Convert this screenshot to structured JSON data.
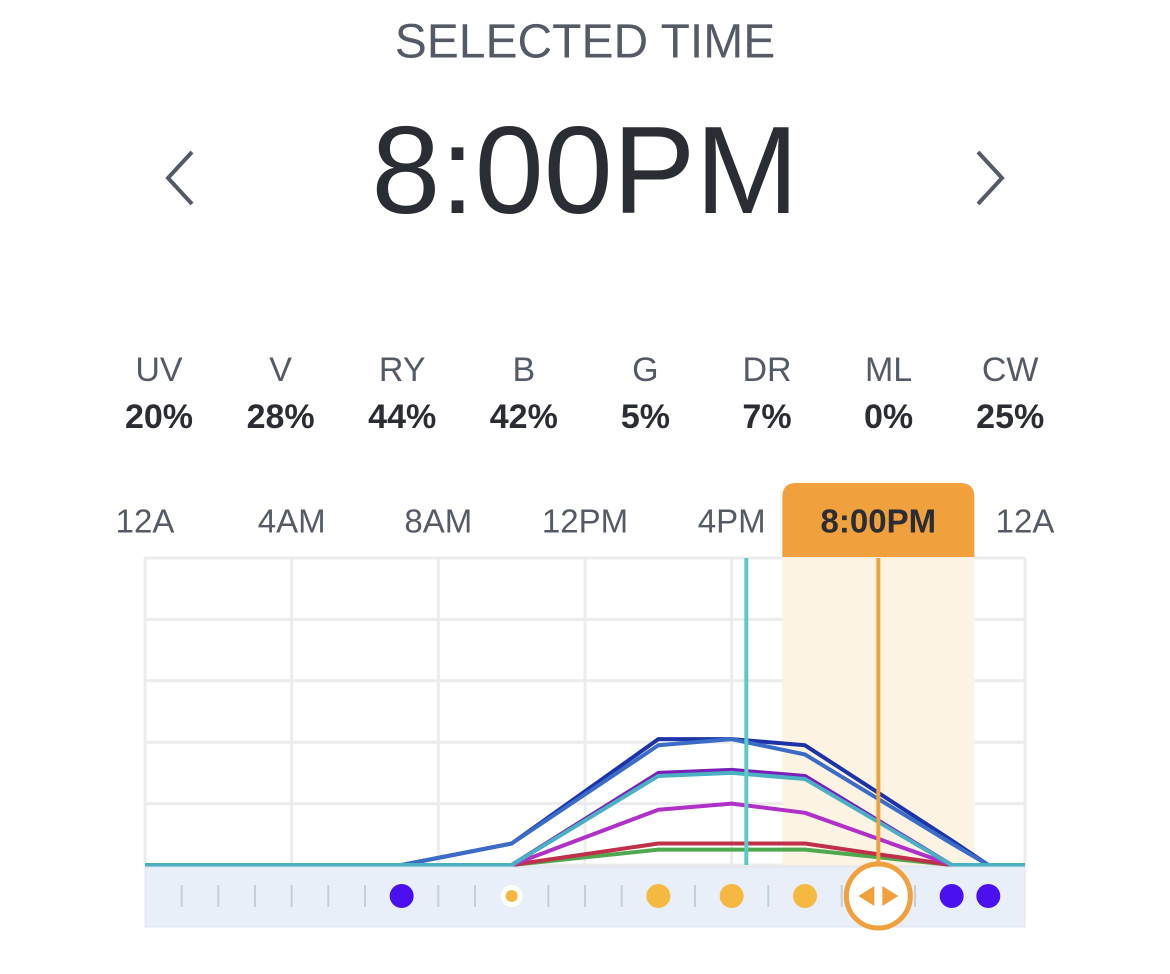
{
  "header": {
    "title": "SELECTED TIME",
    "time": "8:00PM"
  },
  "channels": [
    {
      "label": "UV",
      "value": "20%"
    },
    {
      "label": "V",
      "value": "28%"
    },
    {
      "label": "RY",
      "value": "44%"
    },
    {
      "label": "B",
      "value": "42%"
    },
    {
      "label": "G",
      "value": "5%"
    },
    {
      "label": "DR",
      "value": "7%"
    },
    {
      "label": "ML",
      "value": "0%"
    },
    {
      "label": "CW",
      "value": "25%"
    }
  ],
  "chart_data": {
    "type": "line",
    "x": [
      0,
      7,
      10,
      14,
      16,
      18,
      22,
      23,
      24
    ],
    "xlim": [
      0,
      24
    ],
    "ylim": [
      0,
      100
    ],
    "xticks": [
      {
        "value": 0,
        "label": "12A"
      },
      {
        "value": 4,
        "label": "4AM"
      },
      {
        "value": 8,
        "label": "8AM"
      },
      {
        "value": 12,
        "label": "12PM"
      },
      {
        "value": 16,
        "label": "4PM"
      },
      {
        "value": 20,
        "label": "8:00PM"
      },
      {
        "value": 24,
        "label": "12A"
      }
    ],
    "yticks": [
      0,
      20,
      40,
      60,
      80,
      100
    ],
    "grid": true,
    "current_time": 16.4,
    "selected_time": 20,
    "series": [
      {
        "color": "#4fa84f",
        "values": [
          0,
          0,
          0,
          5,
          5,
          5,
          0,
          0,
          0
        ]
      },
      {
        "color": "#c0304a",
        "values": [
          0,
          0,
          0,
          7,
          7,
          7,
          0,
          0,
          0
        ]
      },
      {
        "color": "#b030c8",
        "values": [
          0,
          0,
          0,
          18,
          20,
          17,
          0,
          0,
          0
        ]
      },
      {
        "color": "#7a20b8",
        "values": [
          0,
          0,
          0,
          30,
          31,
          29,
          0,
          0,
          0
        ]
      },
      {
        "color": "#1c34a8",
        "values": [
          0,
          0,
          7,
          41,
          41,
          39,
          8,
          0,
          0
        ]
      },
      {
        "color": "#3a6cc8",
        "values": [
          0,
          0,
          7,
          39,
          41,
          36,
          7,
          0,
          0
        ]
      },
      {
        "color": "#4ab0c4",
        "values": [
          0,
          0,
          0,
          29,
          30,
          28,
          0,
          0,
          0
        ]
      }
    ],
    "markers": [
      {
        "x": 7,
        "color": "#4a10f0"
      },
      {
        "x": 10,
        "color": "#f5b942",
        "small": true
      },
      {
        "x": 14,
        "color": "#f5b942"
      },
      {
        "x": 16,
        "color": "#f5b942"
      },
      {
        "x": 18,
        "color": "#f5b942"
      },
      {
        "x": 22,
        "color": "#4a10f0"
      },
      {
        "x": 23,
        "color": "#4a10f0"
      }
    ]
  }
}
